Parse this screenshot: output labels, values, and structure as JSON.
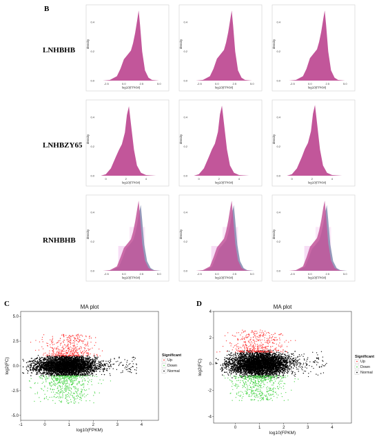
{
  "panel_b": {
    "letter": "B",
    "rows": [
      {
        "label": "LNHBHB"
      },
      {
        "label": "LNHBZY65"
      },
      {
        "label": "RNHBHB"
      }
    ],
    "fill_color": "#c2569a",
    "overlay_color": "#8a8fb4"
  },
  "panel_c": {
    "letter": "C"
  },
  "panel_d": {
    "letter": "D"
  },
  "chart_data": [
    {
      "type": "area",
      "panel": "B",
      "description_grid": "3x3 density plots",
      "xlabel": "log10(FPKM)",
      "ylabel": "density",
      "rows": [
        {
          "label": "LNHBHB",
          "x_ticks": [
            "-2.5",
            "0.0",
            "2.5",
            "5.0"
          ],
          "y_ticks": [
            "0.0",
            "0.2",
            "0.4"
          ],
          "xlim": [
            -4,
            6
          ],
          "ylim": [
            0,
            0.5
          ],
          "x": [
            -3,
            -2,
            -1,
            -0.5,
            0,
            0.5,
            1,
            1.3,
            1.6,
            1.9,
            2.1,
            2.3,
            2.6,
            3,
            3.5,
            4,
            5
          ],
          "density": [
            0,
            0.005,
            0.03,
            0.08,
            0.15,
            0.18,
            0.21,
            0.26,
            0.33,
            0.42,
            0.48,
            0.38,
            0.2,
            0.07,
            0.02,
            0.005,
            0
          ]
        },
        {
          "label": "LNHBZY65",
          "x_ticks": [
            "0",
            "2",
            "4"
          ],
          "y_ticks": [
            "0.0",
            "0.2",
            "0.4"
          ],
          "xlim": [
            -1,
            6
          ],
          "ylim": [
            0,
            0.5
          ],
          "x": [
            -0.5,
            0,
            0.5,
            1,
            1.3,
            1.6,
            1.9,
            2.1,
            2.3,
            2.5,
            2.8,
            3.1,
            3.5,
            4,
            5
          ],
          "density": [
            0,
            0.01,
            0.05,
            0.13,
            0.18,
            0.22,
            0.3,
            0.42,
            0.48,
            0.36,
            0.18,
            0.07,
            0.02,
            0.005,
            0
          ]
        },
        {
          "label": "RNHBHB",
          "x_ticks": [
            "-2.5",
            "0.0",
            "2.5",
            "5.0"
          ],
          "y_ticks": [
            "0.0",
            "0.2",
            "0.4"
          ],
          "xlim": [
            -4,
            6
          ],
          "ylim": [
            0,
            0.5
          ],
          "x": [
            -3,
            -2,
            -1,
            -0.5,
            0,
            0.5,
            1,
            1.3,
            1.6,
            1.9,
            2.1,
            2.3,
            2.6,
            3,
            3.5,
            4,
            5
          ],
          "density": [
            0,
            0.005,
            0.03,
            0.09,
            0.16,
            0.19,
            0.22,
            0.27,
            0.34,
            0.43,
            0.48,
            0.37,
            0.19,
            0.07,
            0.02,
            0.005,
            0
          ]
        }
      ]
    },
    {
      "type": "scatter",
      "panel": "C",
      "title": "MA plot",
      "xlabel": "log10(FPKM)",
      "ylabel": "log2(FC)",
      "xlim": [
        -1,
        4.7
      ],
      "ylim": [
        -5.5,
        5.5
      ],
      "x_ticks": [
        -1,
        0,
        1,
        2,
        3,
        4
      ],
      "y_ticks": [
        "5.0",
        "2.5",
        "0.0",
        "-2.5",
        "-5.0"
      ],
      "y_tick_values": [
        5,
        2.5,
        0,
        -2.5,
        -5
      ],
      "normal_cloud": {
        "x_center": 0.9,
        "x_sd": 0.6,
        "y_center": 0,
        "y_sd": 0.55
      },
      "up_region": {
        "x_center": 1.0,
        "y_min": 1.0,
        "y_max": 3.2
      },
      "down_region": {
        "x_center": 0.9,
        "y_min": -3.8,
        "y_max": -1.0
      },
      "legend": {
        "title": "Significant",
        "entries": [
          "Up",
          "Down",
          "Normal"
        ],
        "placement": "right"
      },
      "colors": {
        "up": "#ff3b3b",
        "down": "#4cd64c",
        "normal": "#000000"
      }
    },
    {
      "type": "scatter",
      "panel": "D",
      "title": "MA plot",
      "xlabel": "log10(FPKM)",
      "ylabel": "log2(FC)",
      "xlim": [
        -0.9,
        4.8
      ],
      "ylim": [
        -4.5,
        4
      ],
      "x_ticks": [
        0,
        1,
        2,
        3,
        4
      ],
      "y_ticks": [
        "4",
        "2",
        "0",
        "-2",
        "-4"
      ],
      "y_tick_values": [
        4,
        2,
        0,
        -2,
        -4
      ],
      "normal_cloud": {
        "x_center": 1.0,
        "x_sd": 0.6,
        "y_center": 0,
        "y_sd": 0.5
      },
      "up_region": {
        "x_center": 0.9,
        "y_min": 0.9,
        "y_max": 2.6
      },
      "down_region": {
        "x_center": 1.0,
        "y_min": -2.8,
        "y_max": -0.9
      },
      "legend": {
        "title": "Significant",
        "entries": [
          "Up",
          "Down",
          "Normal"
        ],
        "placement": "right"
      },
      "colors": {
        "up": "#ff3b3b",
        "down": "#4cd64c",
        "normal": "#000000"
      }
    }
  ]
}
